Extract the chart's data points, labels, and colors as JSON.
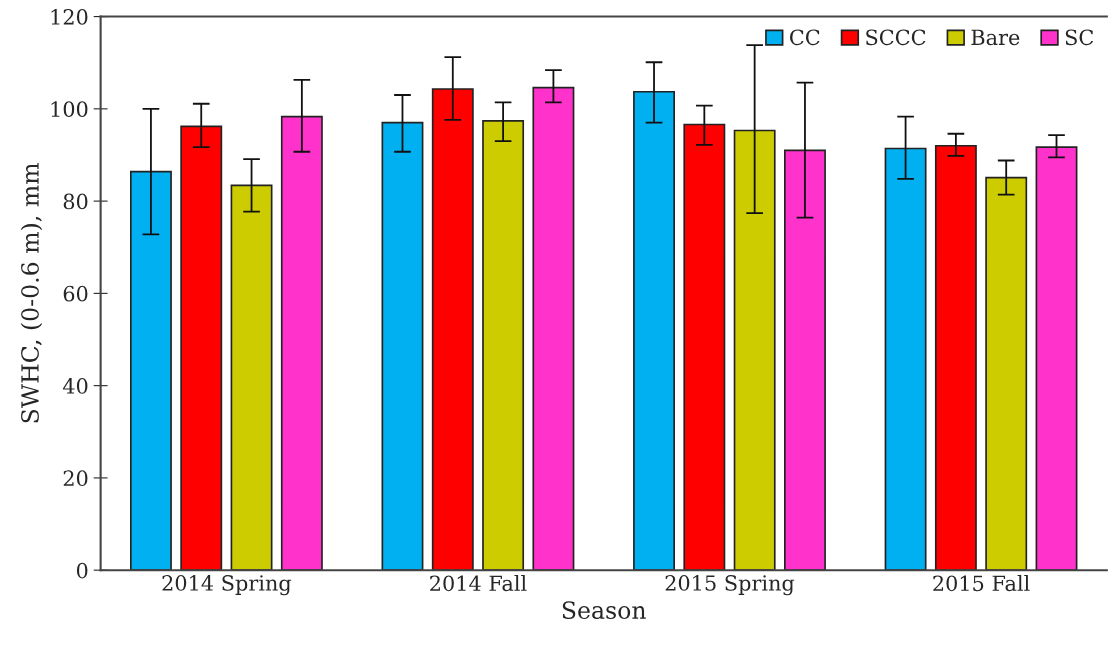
{
  "chart_data": {
    "type": "bar",
    "xlabel": "Season",
    "ylabel": "SWHC, (0-0.6 m), mm",
    "categories": [
      "2014 Spring",
      "2014 Fall",
      "2015 Spring",
      "2015 Fall"
    ],
    "series": [
      {
        "name": "CC",
        "color": "#00b0f0",
        "values": [
          86.4,
          97.0,
          103.7,
          91.4
        ],
        "errors": [
          [
            72.8,
            100.0
          ],
          [
            90.7,
            103.0
          ],
          [
            97.0,
            110.1
          ],
          [
            84.8,
            98.3
          ]
        ]
      },
      {
        "name": "SCCC",
        "color": "#ff0000",
        "values": [
          96.2,
          104.3,
          96.6,
          92.0
        ],
        "errors": [
          [
            91.7,
            101.1
          ],
          [
            97.6,
            111.2
          ],
          [
            92.2,
            100.7
          ],
          [
            89.8,
            94.6
          ]
        ]
      },
      {
        "name": "Bare",
        "color": "#cccc00",
        "values": [
          83.4,
          97.4,
          95.3,
          85.1
        ],
        "errors": [
          [
            77.7,
            89.1
          ],
          [
            93.0,
            101.4
          ],
          [
            77.4,
            113.8
          ],
          [
            81.4,
            88.8
          ]
        ]
      },
      {
        "name": "SC",
        "color": "#ff33cc",
        "values": [
          98.3,
          104.6,
          91.0,
          91.7
        ],
        "errors": [
          [
            90.7,
            106.3
          ],
          [
            101.4,
            108.4
          ],
          [
            76.4,
            105.7
          ],
          [
            89.5,
            94.3
          ]
        ]
      }
    ],
    "ylim": [
      0,
      120
    ],
    "yticks": [
      0,
      20,
      40,
      60,
      80,
      100,
      120
    ],
    "grid": false,
    "legend": "top right"
  }
}
